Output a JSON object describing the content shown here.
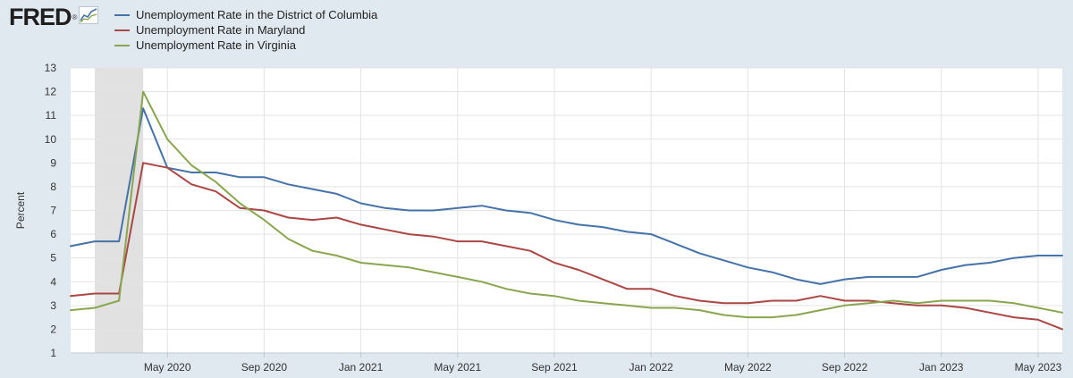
{
  "header": {
    "logo_text": "FRED",
    "logo_mark": "®"
  },
  "icons": {
    "logo_chart": "line-chart-icon"
  },
  "chart_data": {
    "type": "line",
    "title": "",
    "xlabel": "",
    "ylabel": "Percent",
    "ylim": [
      1,
      13
    ],
    "yticks": [
      1,
      2,
      3,
      4,
      5,
      6,
      7,
      8,
      9,
      10,
      11,
      12,
      13
    ],
    "grid": true,
    "legend_position": "top-left",
    "x": [
      "2020-01",
      "2020-02",
      "2020-03",
      "2020-04",
      "2020-05",
      "2020-06",
      "2020-07",
      "2020-08",
      "2020-09",
      "2020-10",
      "2020-11",
      "2020-12",
      "2021-01",
      "2021-02",
      "2021-03",
      "2021-04",
      "2021-05",
      "2021-06",
      "2021-07",
      "2021-08",
      "2021-09",
      "2021-10",
      "2021-11",
      "2021-12",
      "2022-01",
      "2022-02",
      "2022-03",
      "2022-04",
      "2022-05",
      "2022-06",
      "2022-07",
      "2022-08",
      "2022-09",
      "2022-10",
      "2022-11",
      "2022-12",
      "2023-01",
      "2023-02",
      "2023-03",
      "2023-04",
      "2023-05",
      "2023-06"
    ],
    "xtick_labels": [
      {
        "x": "2020-05",
        "label": "May 2020"
      },
      {
        "x": "2020-09",
        "label": "Sep 2020"
      },
      {
        "x": "2021-01",
        "label": "Jan 2021"
      },
      {
        "x": "2021-05",
        "label": "May 2021"
      },
      {
        "x": "2021-09",
        "label": "Sep 2021"
      },
      {
        "x": "2022-01",
        "label": "Jan 2022"
      },
      {
        "x": "2022-05",
        "label": "May 2022"
      },
      {
        "x": "2022-09",
        "label": "Sep 2022"
      },
      {
        "x": "2023-01",
        "label": "Jan 2023"
      },
      {
        "x": "2023-05",
        "label": "May 2023"
      }
    ],
    "recession": {
      "start": "2020-02",
      "end": "2020-04"
    },
    "series": [
      {
        "name": "Unemployment Rate in the District of Columbia",
        "color": "#4572a7",
        "values": [
          5.5,
          5.7,
          5.7,
          11.3,
          8.8,
          8.6,
          8.6,
          8.4,
          8.4,
          8.1,
          7.9,
          7.7,
          7.3,
          7.1,
          7.0,
          7.0,
          7.1,
          7.2,
          7.0,
          6.9,
          6.6,
          6.4,
          6.3,
          6.1,
          6.0,
          5.6,
          5.2,
          4.9,
          4.6,
          4.4,
          4.1,
          3.9,
          4.1,
          4.2,
          4.2,
          4.2,
          4.5,
          4.7,
          4.8,
          5.0,
          5.1,
          5.1
        ]
      },
      {
        "name": "Unemployment Rate in Maryland",
        "color": "#aa4643",
        "values": [
          3.4,
          3.5,
          3.5,
          9.0,
          8.8,
          8.1,
          7.8,
          7.1,
          7.0,
          6.7,
          6.6,
          6.7,
          6.4,
          6.2,
          6.0,
          5.9,
          5.7,
          5.7,
          5.5,
          5.3,
          4.8,
          4.5,
          4.1,
          3.7,
          3.7,
          3.4,
          3.2,
          3.1,
          3.1,
          3.2,
          3.2,
          3.4,
          3.2,
          3.2,
          3.1,
          3.0,
          3.0,
          2.9,
          2.7,
          2.5,
          2.4,
          2.0
        ]
      },
      {
        "name": "Unemployment Rate in Virginia",
        "color": "#89a54e",
        "values": [
          2.8,
          2.9,
          3.2,
          12.0,
          10.0,
          8.9,
          8.2,
          7.3,
          6.6,
          5.8,
          5.3,
          5.1,
          4.8,
          4.7,
          4.6,
          4.4,
          4.2,
          4.0,
          3.7,
          3.5,
          3.4,
          3.2,
          3.1,
          3.0,
          2.9,
          2.9,
          2.8,
          2.6,
          2.5,
          2.5,
          2.6,
          2.8,
          3.0,
          3.1,
          3.2,
          3.1,
          3.2,
          3.2,
          3.2,
          3.1,
          2.9,
          2.7
        ]
      }
    ]
  }
}
